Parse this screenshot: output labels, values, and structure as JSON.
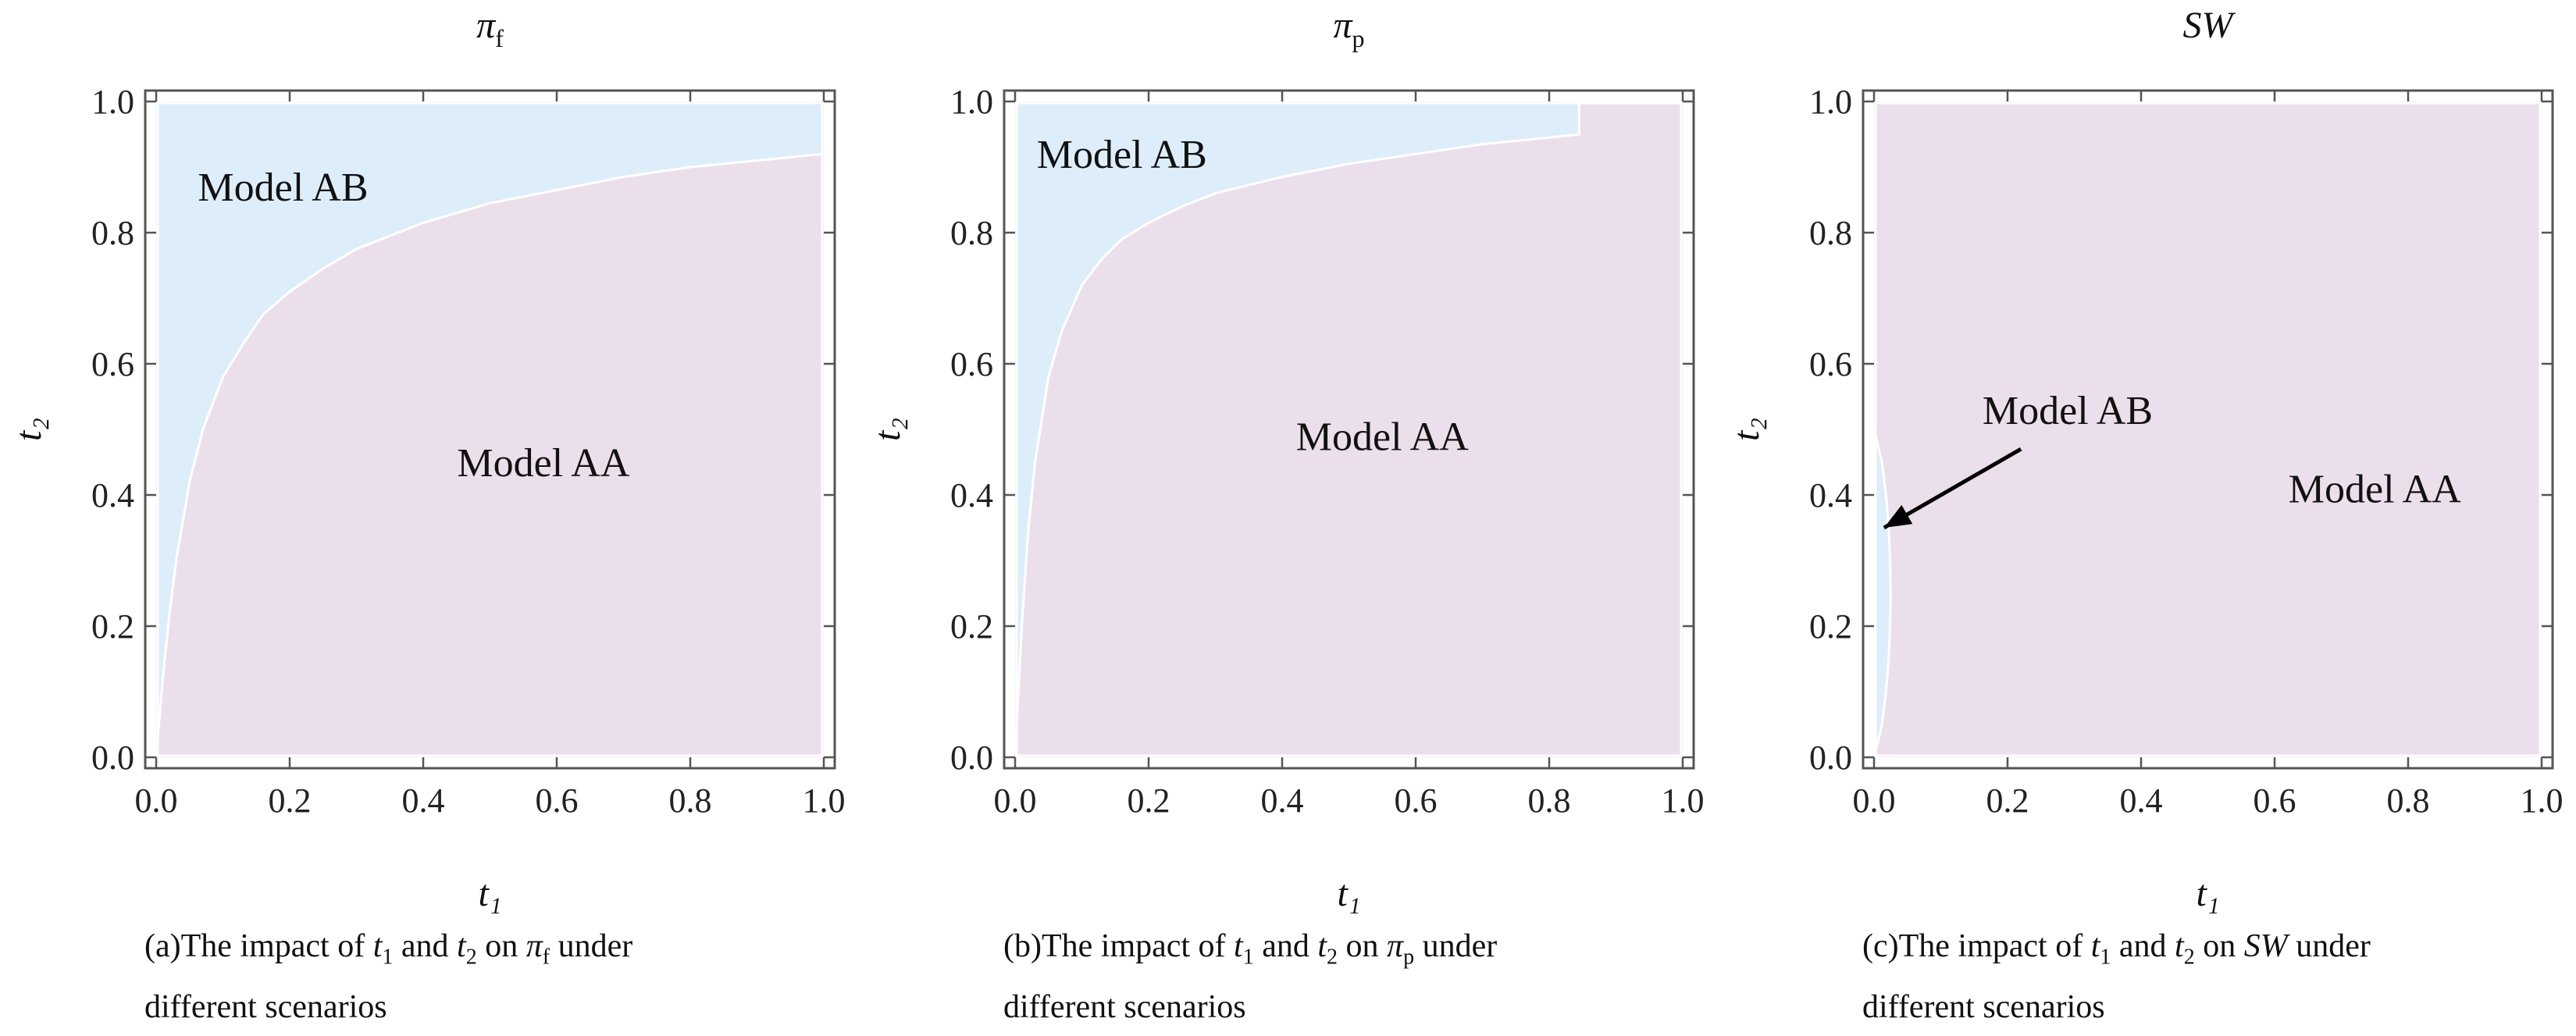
{
  "chart_data": [
    {
      "type": "area",
      "title": "π_f",
      "title_main": "π",
      "title_sub": "f",
      "xlabel": "t₁",
      "ylabel": "t₂",
      "xlim": [
        0,
        1
      ],
      "ylim": [
        0,
        1
      ],
      "xticks": [
        "0.0",
        "0.2",
        "0.4",
        "0.6",
        "0.8",
        "1.0"
      ],
      "yticks": [
        "0.0",
        "0.2",
        "0.4",
        "0.6",
        "0.8",
        "1.0"
      ],
      "grid": false,
      "series": [
        {
          "name": "Model AB",
          "region": "above boundary"
        },
        {
          "name": "Model AA",
          "region": "below boundary"
        }
      ],
      "boundary": {
        "x": [
          0.0,
          0.01,
          0.02,
          0.03,
          0.05,
          0.07,
          0.1,
          0.13,
          0.16,
          0.2,
          0.25,
          0.3,
          0.35,
          0.4,
          0.5,
          0.6,
          0.7,
          0.8,
          0.9,
          1.0
        ],
        "y": [
          0.0,
          0.12,
          0.22,
          0.3,
          0.42,
          0.5,
          0.58,
          0.63,
          0.675,
          0.71,
          0.745,
          0.775,
          0.795,
          0.815,
          0.845,
          0.865,
          0.885,
          0.9,
          0.91,
          0.92
        ]
      },
      "annotations": [
        {
          "text": "Model AB",
          "x": 0.19,
          "y": 0.87
        },
        {
          "text": "Model AA",
          "x": 0.58,
          "y": 0.45
        }
      ],
      "caption": {
        "prefix": "(a)The impact of ",
        "v1": "t",
        "v1_sub": "1",
        "and": " and ",
        "v2": "t",
        "v2_sub": "2",
        "on": " on ",
        "metric": "π",
        "metric_sub": "f",
        "suffix": " under",
        "line2": "different scenarios"
      },
      "colors": {
        "model_ab": "#ddeefa",
        "model_aa": "#ecdfec",
        "boundary": "#ffffff"
      }
    },
    {
      "type": "area",
      "title": "π_p",
      "title_main": "π",
      "title_sub": "p",
      "xlabel": "t₁",
      "ylabel": "t₂",
      "xlim": [
        0,
        1
      ],
      "ylim": [
        0,
        1
      ],
      "xticks": [
        "0.0",
        "0.2",
        "0.4",
        "0.6",
        "0.8",
        "1.0"
      ],
      "yticks": [
        "0.0",
        "0.2",
        "0.4",
        "0.6",
        "0.8",
        "1.0"
      ],
      "grid": false,
      "series": [
        {
          "name": "Model AB",
          "region": "above boundary"
        },
        {
          "name": "Model AA",
          "region": "below boundary"
        }
      ],
      "boundary": {
        "x": [
          0.0,
          0.005,
          0.01,
          0.02,
          0.03,
          0.05,
          0.07,
          0.1,
          0.13,
          0.16,
          0.2,
          0.25,
          0.3,
          0.4,
          0.5,
          0.6,
          0.7,
          0.8,
          0.845,
          0.845,
          1.0
        ],
        "y": [
          0.0,
          0.1,
          0.2,
          0.35,
          0.45,
          0.58,
          0.65,
          0.72,
          0.76,
          0.79,
          0.815,
          0.84,
          0.86,
          0.885,
          0.905,
          0.92,
          0.935,
          0.945,
          0.95,
          1.0,
          1.0
        ]
      },
      "annotations": [
        {
          "text": "Model AB",
          "x": 0.16,
          "y": 0.92
        },
        {
          "text": "Model AA",
          "x": 0.55,
          "y": 0.49
        }
      ],
      "caption": {
        "prefix": "(b)The impact of ",
        "v1": "t",
        "v1_sub": "1",
        "and": " and ",
        "v2": "t",
        "v2_sub": "2",
        "on": " on ",
        "metric": "π",
        "metric_sub": "p",
        "suffix": " under",
        "line2": "different scenarios"
      },
      "colors": {
        "model_ab": "#ddeefa",
        "model_aa": "#ecdfec",
        "boundary": "#ffffff"
      }
    },
    {
      "type": "area",
      "title": "SW",
      "title_main": "SW",
      "title_sub": "",
      "xlabel": "t₁",
      "ylabel": "t₂",
      "xlim": [
        0,
        1
      ],
      "ylim": [
        0,
        1
      ],
      "xticks": [
        "0.0",
        "0.2",
        "0.4",
        "0.6",
        "0.8",
        "1.0"
      ],
      "yticks": [
        "0.0",
        "0.2",
        "0.4",
        "0.6",
        "0.8",
        "1.0"
      ],
      "grid": false,
      "series": [
        {
          "name": "Model AB",
          "region": "narrow lens near t1 = 0"
        },
        {
          "name": "Model AA",
          "region": "rest of domain"
        }
      ],
      "lens": {
        "t2": [
          0.0,
          0.05,
          0.1,
          0.15,
          0.2,
          0.25,
          0.3,
          0.35,
          0.4,
          0.45,
          0.5
        ],
        "t1": [
          0.0,
          0.012,
          0.018,
          0.022,
          0.024,
          0.025,
          0.024,
          0.022,
          0.018,
          0.012,
          0.0
        ]
      },
      "arrow": {
        "from": [
          0.22,
          0.47
        ],
        "to": [
          0.015,
          0.35
        ]
      },
      "annotations": [
        {
          "text": "Model AB",
          "x": 0.29,
          "y": 0.53
        },
        {
          "text": "Model AA",
          "x": 0.75,
          "y": 0.41
        }
      ],
      "caption": {
        "prefix": "(c)The impact of ",
        "v1": "t",
        "v1_sub": "1",
        "and": " and ",
        "v2": "t",
        "v2_sub": "2",
        "on": " on ",
        "metric": "SW",
        "metric_sub": "",
        "suffix": " under",
        "line2": "different scenarios"
      },
      "colors": {
        "model_ab": "#ddeefa",
        "model_aa": "#ecdfec",
        "boundary": "#ffffff"
      }
    }
  ]
}
